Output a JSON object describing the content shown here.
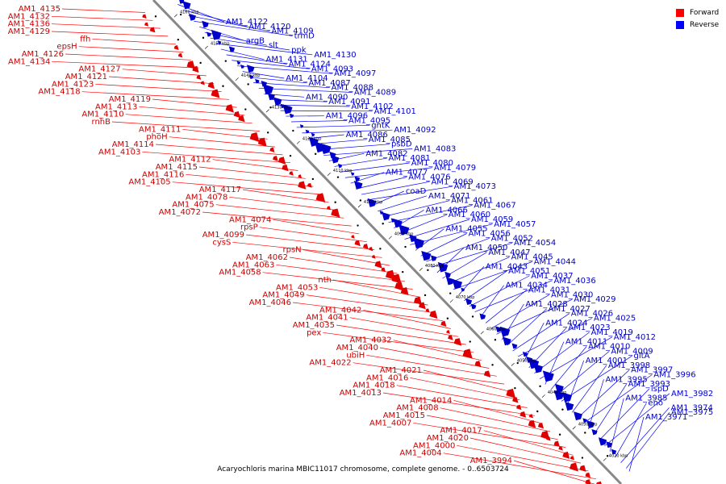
{
  "caption": "Acaryochloris marina MBIC11017 chromosome, complete genome. - 0..6503724",
  "legend": {
    "forward_label": "Forward",
    "reverse_label": "Reverse",
    "forward_color": "#ff0000",
    "reverse_color": "#0000ff"
  },
  "colors": {
    "forward": "#e00000",
    "reverse": "#0000cc",
    "axis": "#888888",
    "forward_line": "#ff0000",
    "reverse_line": "#0000ff"
  },
  "ticks": [
    "4160 kbp",
    "4150 kbp",
    "4140 kbp",
    "4130 kbp",
    "4120 kbp",
    "4110 kbp",
    "4100 kbp",
    "4090 kbp",
    "4080 kbp",
    "4070 kbp",
    "4060 kbp",
    "4050 kbp",
    "4040 kbp",
    "4030 kbp",
    "4020 kbp"
  ],
  "forward_labels": [
    "AM1_4135",
    "AM1_4132",
    "AM1_4136",
    "AM1_4129",
    "ffh",
    "epsH",
    "AM1_4126",
    "AM1_4134",
    "AM1_4127",
    "AM1_4121",
    "AM1_4123",
    "AM1_4118",
    "AM1_4119",
    "AM1_4113",
    "AM1_4110",
    "rnhB",
    "AM1_4111",
    "phoH",
    "AM1_4114",
    "AM1_4103",
    "AM1_4112",
    "AM1_4115",
    "AM1_4116",
    "AM1_4105",
    "AM1_4117",
    "AM1_4078",
    "AM1_4075",
    "AM1_4072",
    "AM1_4074",
    "rpsP",
    "AM1_4099",
    "cysS",
    "rpsN",
    "AM1_4062",
    "AM1_4063",
    "AM1_4058",
    "nth",
    "AM1_4053",
    "AM1_4049",
    "AM1_4046",
    "AM1_4042",
    "AM1_4041",
    "AM1_4035",
    "pex",
    "AM1_4032",
    "AM1_4040",
    "ubiH",
    "AM1_4022",
    "AM1_4021",
    "AM1_4016",
    "AM1_4018",
    "AM1_4013",
    "AM1_4014",
    "AM1_4008",
    "AM1_4015",
    "AM1_4007",
    "AM1_4017",
    "AM1_4020",
    "AM1_4000",
    "AM1_4004",
    "AM1_3994"
  ],
  "reverse_labels": [
    "AM1_4122",
    "AM1_4120",
    "AM1_4109",
    "trmD",
    "argB",
    "slt",
    "ppk",
    "AM1_4130",
    "AM1_4131",
    "AM1_4124",
    "AM1_4093",
    "AM1_4097",
    "AM1_4104",
    "AM1_4087",
    "AM1_4088",
    "AM1_4089",
    "AM1_4090",
    "AM1_4091",
    "AM1_4102",
    "AM1_4101",
    "AM1_4096",
    "AM1_4095",
    "gntK",
    "AM1_4092",
    "AM1_4086",
    "AM1_4085",
    "psbD",
    "AM1_4083",
    "AM1_4082",
    "AM1_4081",
    "AM1_4080",
    "AM1_4079",
    "AM1_4077",
    "AM1_4076",
    "AM1_4069",
    "AM1_4073",
    "coaD",
    "AM1_4071",
    "AM1_4061",
    "AM1_4067",
    "AM1_4066",
    "AM1_4060",
    "AM1_4059",
    "AM1_4057",
    "AM1_4055",
    "AM1_4056",
    "AM1_4052",
    "AM1_4054",
    "AM1_4050",
    "AM1_4047",
    "AM1_4045",
    "AM1_4044",
    "AM1_4043",
    "AM1_4051",
    "AM1_4037",
    "AM1_4036",
    "AM1_4034",
    "AM1_4031",
    "AM1_4030",
    "AM1_4029",
    "AM1_4028",
    "AM1_4027",
    "AM1_4026",
    "AM1_4025",
    "AM1_4024",
    "AM1_4023",
    "AM1_4019",
    "AM1_4012",
    "AM1_4011",
    "AM1_4010",
    "AM1_4009",
    "gltA",
    "AM1_4001",
    "AM1_3998",
    "AM1_3997",
    "AM1_3996",
    "AM1_3995",
    "AM1_3993",
    "ispD",
    "AM1_3982",
    "AM1_3985",
    "eno",
    "AM1_3974",
    "AM1_3975",
    "AM1_3971"
  ]
}
